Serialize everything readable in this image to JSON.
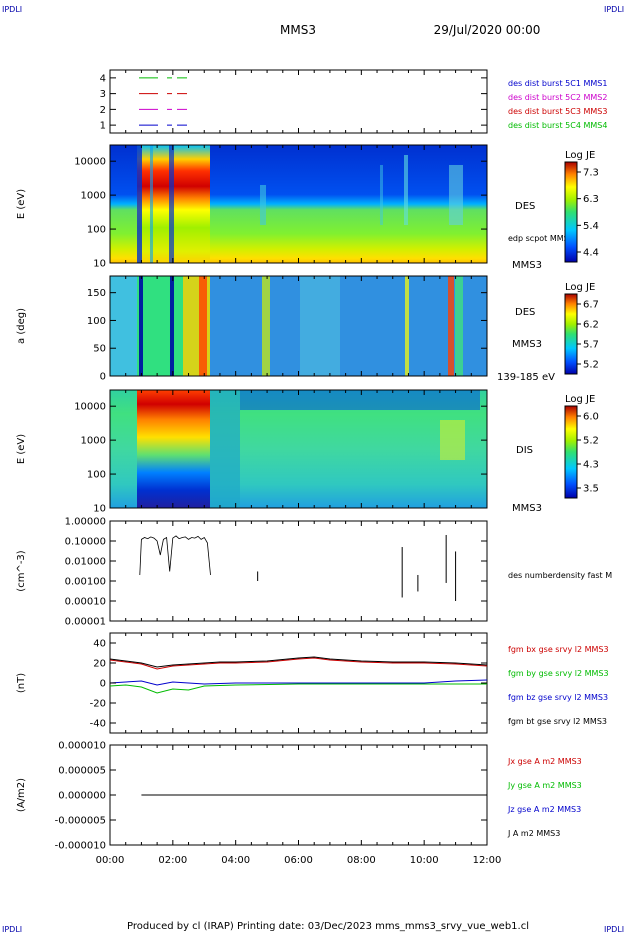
{
  "corner_marks": {
    "tl": "IPDLI",
    "tr": "IPDLI",
    "bl": "IPDLI",
    "br": "IPDLI"
  },
  "header": {
    "title": "MMS3",
    "date": "29/Jul/2020 00:00"
  },
  "footer": {
    "text": "Produced by cl (IRAP)   Printing date: 03/Dec/2023   mms_mms3_srvy_vue_web1.cl"
  },
  "colors": {
    "blue": "#0000cc",
    "magenta": "#cc00cc",
    "red": "#cc0000",
    "green": "#00bb00",
    "black": "#000000"
  },
  "chart_data": [
    {
      "type": "line",
      "panel": "burst availability",
      "ylim": [
        0.5,
        4.5
      ],
      "yticks": [
        "1",
        "2",
        "3",
        "4"
      ],
      "series": [
        {
          "name": "des dist burst 5C1 MMS1",
          "color": "blue",
          "level": 1
        },
        {
          "name": "des dist burst 5C2 MMS2",
          "color": "magenta",
          "level": 2
        },
        {
          "name": "des dist burst 5C3 MMS3",
          "color": "red",
          "level": 3
        },
        {
          "name": "des dist burst 5C4 MMS4",
          "color": "green",
          "level": 4
        }
      ]
    },
    {
      "type": "heatmap",
      "panel": "DES energy spectrogram",
      "ylabel": "E (eV)",
      "yscale": "log",
      "ylim": [
        10,
        30000
      ],
      "yticks": [
        "10",
        "100",
        "1000",
        "10000"
      ],
      "right_labels": [
        "DES",
        "edp scpot MMS3",
        "MMS3"
      ],
      "colorbar": {
        "title": "Log JE",
        "ticks": [
          "7.3",
          "6.3",
          "5.4",
          "4.4"
        ]
      }
    },
    {
      "type": "heatmap",
      "panel": "DES pitch angle",
      "ylabel": "a (deg)",
      "ylim": [
        0,
        180
      ],
      "yticks": [
        "0",
        "50",
        "100",
        "150"
      ],
      "right_labels": [
        "DES",
        "MMS3",
        "139-185 eV"
      ],
      "colorbar": {
        "title": "Log JE",
        "ticks": [
          "6.7",
          "6.2",
          "5.7",
          "5.2"
        ]
      }
    },
    {
      "type": "heatmap",
      "panel": "DIS energy spectrogram",
      "ylabel": "E (eV)",
      "yscale": "log",
      "ylim": [
        10,
        30000
      ],
      "yticks": [
        "10",
        "100",
        "1000",
        "10000"
      ],
      "right_labels": [
        "DIS",
        "MMS3"
      ],
      "colorbar": {
        "title": "Log JE",
        "ticks": [
          "6.0",
          "5.2",
          "4.3",
          "3.5"
        ]
      }
    },
    {
      "type": "line",
      "panel": "number density",
      "ylabel": "(cm^-3)",
      "yscale": "log",
      "ylim": [
        1e-05,
        1.0
      ],
      "yticks": [
        "1.00000",
        "0.10000",
        "0.01000",
        "0.00100",
        "0.00010",
        "0.00001"
      ],
      "series": [
        {
          "name": "des numberdensity fast M",
          "color": "black"
        }
      ]
    },
    {
      "type": "line",
      "panel": "magnetic field",
      "ylabel": "(nT)",
      "ylim": [
        -50,
        50
      ],
      "yticks": [
        "40",
        "20",
        "0",
        "-20",
        "-40"
      ],
      "series": [
        {
          "name": "fgm bx gse srvy l2 MMS3",
          "color": "red"
        },
        {
          "name": "fgm by gse srvy l2 MMS3",
          "color": "green"
        },
        {
          "name": "fgm bz gse srvy l2 MMS3",
          "color": "blue"
        },
        {
          "name": "fgm bt gse srvy l2 MMS3",
          "color": "black"
        }
      ]
    },
    {
      "type": "line",
      "panel": "current density",
      "ylabel": "(A/m2)",
      "ylim": [
        -1e-05,
        1e-05
      ],
      "yticks": [
        "0.000010",
        "0.000005",
        "0.000000",
        "-0.000005",
        "-0.000010"
      ],
      "series": [
        {
          "name": "Jx gse A m2 MMS3",
          "color": "red"
        },
        {
          "name": "Jy gse A m2 MMS3",
          "color": "green"
        },
        {
          "name": "Jz gse A m2 MMS3",
          "color": "blue"
        },
        {
          "name": "J A m2 MMS3",
          "color": "black"
        }
      ]
    }
  ],
  "x_axis": {
    "ticks": [
      "00:00",
      "02:00",
      "04:00",
      "06:00",
      "08:00",
      "10:00",
      "12:00"
    ],
    "xlim_hours": [
      0,
      12
    ]
  },
  "density_samples": [
    [
      0.95,
      0.002
    ],
    [
      1.0,
      0.12
    ],
    [
      1.1,
      0.15
    ],
    [
      1.2,
      0.13
    ],
    [
      1.3,
      0.16
    ],
    [
      1.4,
      0.14
    ],
    [
      1.5,
      0.1
    ],
    [
      1.6,
      0.02
    ],
    [
      1.7,
      0.12
    ],
    [
      1.8,
      0.15
    ],
    [
      1.9,
      0.003
    ],
    [
      2.0,
      0.14
    ],
    [
      2.1,
      0.18
    ],
    [
      2.2,
      0.13
    ],
    [
      2.3,
      0.15
    ],
    [
      2.4,
      0.16
    ],
    [
      2.5,
      0.12
    ],
    [
      2.6,
      0.15
    ],
    [
      2.7,
      0.14
    ],
    [
      2.8,
      0.17
    ],
    [
      2.9,
      0.12
    ],
    [
      3.0,
      0.15
    ],
    [
      3.1,
      0.08
    ],
    [
      3.2,
      0.002
    ]
  ],
  "field_samples": {
    "bt": [
      [
        0,
        24
      ],
      [
        0.5,
        22
      ],
      [
        1,
        20
      ],
      [
        1.5,
        16
      ],
      [
        2,
        18
      ],
      [
        2.5,
        19
      ],
      [
        3,
        20
      ],
      [
        3.5,
        21
      ],
      [
        4,
        21
      ],
      [
        5,
        22
      ],
      [
        6,
        25
      ],
      [
        6.5,
        26
      ],
      [
        7,
        24
      ],
      [
        8,
        22
      ],
      [
        9,
        21
      ],
      [
        10,
        21
      ],
      [
        11,
        20
      ],
      [
        12,
        18
      ]
    ],
    "bx": [
      [
        0,
        23
      ],
      [
        0.5,
        21
      ],
      [
        1,
        19
      ],
      [
        1.5,
        14
      ],
      [
        2,
        17
      ],
      [
        2.5,
        18
      ],
      [
        3,
        19
      ],
      [
        3.5,
        20
      ],
      [
        4,
        20
      ],
      [
        5,
        21
      ],
      [
        6,
        24
      ],
      [
        6.5,
        25
      ],
      [
        7,
        23
      ],
      [
        8,
        21
      ],
      [
        9,
        20
      ],
      [
        10,
        20
      ],
      [
        11,
        19
      ],
      [
        12,
        17
      ]
    ],
    "by": [
      [
        0,
        -3
      ],
      [
        0.5,
        -2
      ],
      [
        1,
        -4
      ],
      [
        1.5,
        -10
      ],
      [
        2,
        -6
      ],
      [
        2.5,
        -7
      ],
      [
        3,
        -3
      ],
      [
        4,
        -2
      ],
      [
        6,
        -1
      ],
      [
        8,
        -1
      ],
      [
        10,
        -1
      ],
      [
        12,
        -1
      ]
    ],
    "bz": [
      [
        0,
        0
      ],
      [
        0.5,
        1
      ],
      [
        1,
        2
      ],
      [
        1.5,
        -2
      ],
      [
        2,
        1
      ],
      [
        2.5,
        0
      ],
      [
        3,
        -1
      ],
      [
        4,
        0
      ],
      [
        6,
        0
      ],
      [
        8,
        0
      ],
      [
        10,
        0
      ],
      [
        11,
        2
      ],
      [
        12,
        3
      ]
    ]
  }
}
